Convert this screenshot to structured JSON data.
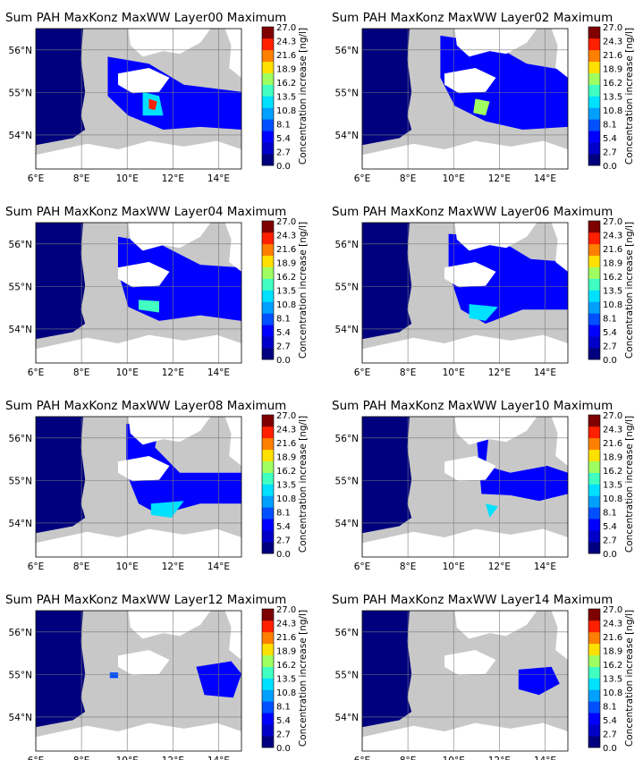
{
  "colors": {
    "ocean_background": "#c8c8c8",
    "land": "#ffffff",
    "grid": "#7a7a7a",
    "colorbar": [
      "#00007f",
      "#0000c8",
      "#0000ff",
      "#0050ff",
      "#00a0ff",
      "#00e0ff",
      "#40ffc0",
      "#a0ff60",
      "#ffe000",
      "#ff8000",
      "#ff2000",
      "#7f0000"
    ]
  },
  "axes": {
    "x_ticks": [
      "6°E",
      "8°E",
      "10°E",
      "12°E",
      "14°E"
    ],
    "y_ticks": [
      "56°N",
      "55°N",
      "54°N"
    ],
    "x_range": [
      6,
      15
    ],
    "y_range": [
      53.2,
      56.5
    ]
  },
  "colorbar": {
    "label": "Concentration increase [ng/l]",
    "ticks": [
      "27.0",
      "24.3",
      "21.6",
      "18.9",
      "16.2",
      "13.5",
      "10.8",
      "8.1",
      "5.4",
      "2.7",
      "0.0"
    ]
  },
  "panels": [
    {
      "title": "Sum PAH MaxKonz MaxWW Layer00 Maximum",
      "layer": "Layer00"
    },
    {
      "title": "Sum PAH MaxKonz MaxWW Layer02 Maximum",
      "layer": "Layer02"
    },
    {
      "title": "Sum PAH MaxKonz MaxWW Layer04 Maximum",
      "layer": "Layer04"
    },
    {
      "title": "Sum PAH MaxKonz MaxWW Layer06 Maximum",
      "layer": "Layer06"
    },
    {
      "title": "Sum PAH MaxKonz MaxWW Layer08 Maximum",
      "layer": "Layer08"
    },
    {
      "title": "Sum PAH MaxKonz MaxWW Layer10 Maximum",
      "layer": "Layer10"
    },
    {
      "title": "Sum PAH MaxKonz MaxWW Layer12 Maximum",
      "layer": "Layer12"
    },
    {
      "title": "Sum PAH MaxKonz MaxWW Layer14 Maximum",
      "layer": "Layer14"
    }
  ]
}
